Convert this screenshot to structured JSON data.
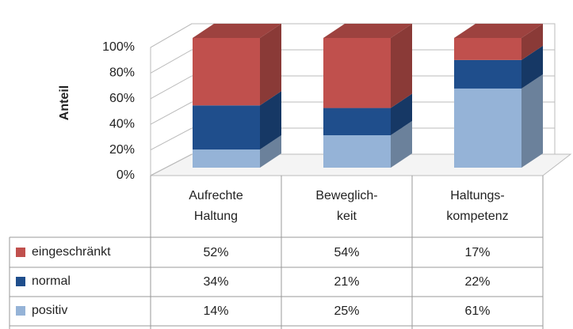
{
  "chart_data": {
    "type": "bar",
    "stacked": true,
    "y_label": "Anteil",
    "categories": [
      "Aufrechte\nHaltung",
      "Beweglich-\nkeit",
      "Haltungs-\nkompetenz"
    ],
    "series": [
      {
        "name": "positiv",
        "color": "#95b3d7",
        "values": [
          14,
          25,
          61
        ],
        "value_labels": [
          "14%",
          "25%",
          "61%"
        ]
      },
      {
        "name": "normal",
        "color": "#1f4e8c",
        "values": [
          34,
          21,
          22
        ],
        "value_labels": [
          "34%",
          "21%",
          "22%"
        ]
      },
      {
        "name": "eingeschränkt",
        "color": "#c0504d",
        "values": [
          52,
          54,
          17
        ],
        "value_labels": [
          "52%",
          "54%",
          "17%"
        ]
      }
    ],
    "ylim": [
      0,
      100
    ],
    "yticks": [
      {
        "value": 0,
        "label": "0%"
      },
      {
        "value": 20,
        "label": "20%"
      },
      {
        "value": 40,
        "label": "40%"
      },
      {
        "value": 60,
        "label": "60%"
      },
      {
        "value": 80,
        "label": "80%"
      },
      {
        "value": 100,
        "label": "100%"
      }
    ],
    "grid": true,
    "data_table": true
  }
}
